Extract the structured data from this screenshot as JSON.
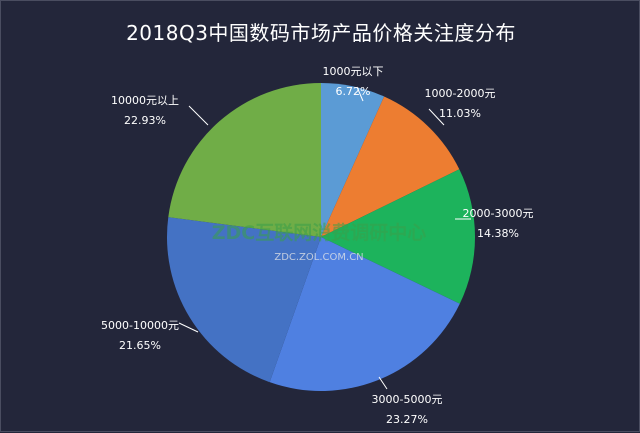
{
  "chart_data": {
    "type": "pie",
    "title": "2018Q3中国数码市场产品价格关注度分布",
    "categories": [
      "1000元以下",
      "1000-2000元",
      "2000-3000元",
      "3000-5000元",
      "5000-10000元",
      "10000元以上"
    ],
    "values": [
      6.72,
      11.03,
      14.38,
      23.27,
      21.65,
      22.93
    ],
    "value_labels": [
      "6.72%",
      "11.03%",
      "14.38%",
      "23.27%",
      "21.65%",
      "22.93%"
    ],
    "colors": [
      "#5b9bd5",
      "#ed7d31",
      "#1db35c",
      "#4f80e1",
      "#4472c4",
      "#70ad47"
    ],
    "start_angle_deg": 0,
    "direction": "clockwise"
  },
  "watermark": {
    "line1": "ZDC互联网消费调研中心",
    "line2": "ZDC.ZOL.COM.CN"
  }
}
